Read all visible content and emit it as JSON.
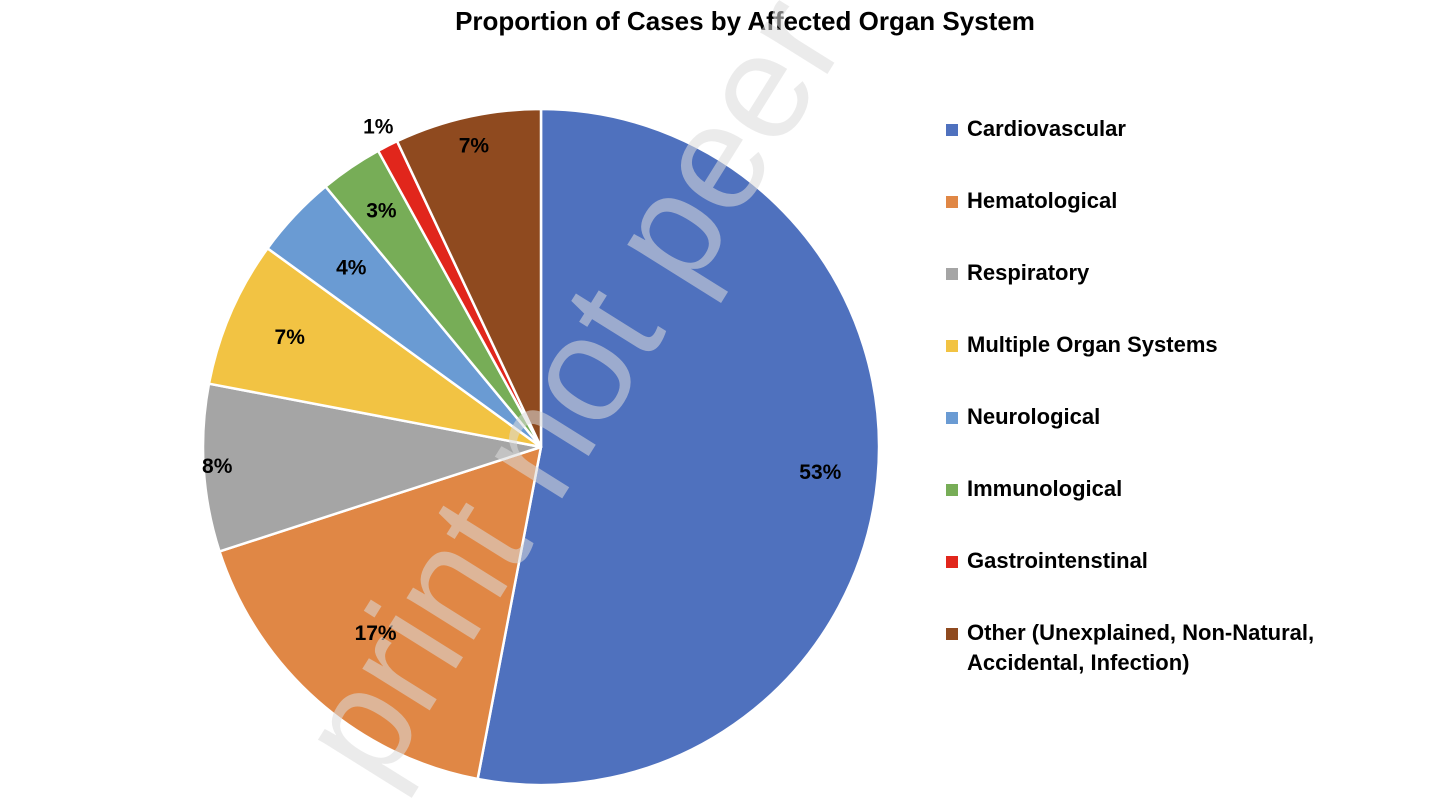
{
  "chart_data": {
    "type": "pie",
    "title": "Proportion of Cases by Affected Organ System",
    "slices": [
      {
        "label": "Cardiovascular",
        "value": 53,
        "display": "53%",
        "color": "#4f71be"
      },
      {
        "label": "Hematological",
        "value": 17,
        "display": "17%",
        "color": "#e08745"
      },
      {
        "label": "Respiratory",
        "value": 8,
        "display": "8%",
        "color": "#a5a5a5"
      },
      {
        "label": "Multiple Organ Systems",
        "value": 7,
        "display": "7%",
        "color": "#f2c343"
      },
      {
        "label": "Neurological",
        "value": 4,
        "display": "4%",
        "color": "#6a9bd3"
      },
      {
        "label": "Immunological",
        "value": 3,
        "display": "3%",
        "color": "#77ad57"
      },
      {
        "label": "Gastrointenstinal",
        "value": 1,
        "display": "1%",
        "color": "#e1261c"
      },
      {
        "label": "Other (Unexplained, Non-Natural, Accidental, Infection)",
        "value": 7,
        "display": "7%",
        "color": "#8f4a1f"
      }
    ],
    "direction": "clockwise",
    "start": "12 o'clock",
    "legend_position": "right"
  },
  "watermark": "print not peer re"
}
